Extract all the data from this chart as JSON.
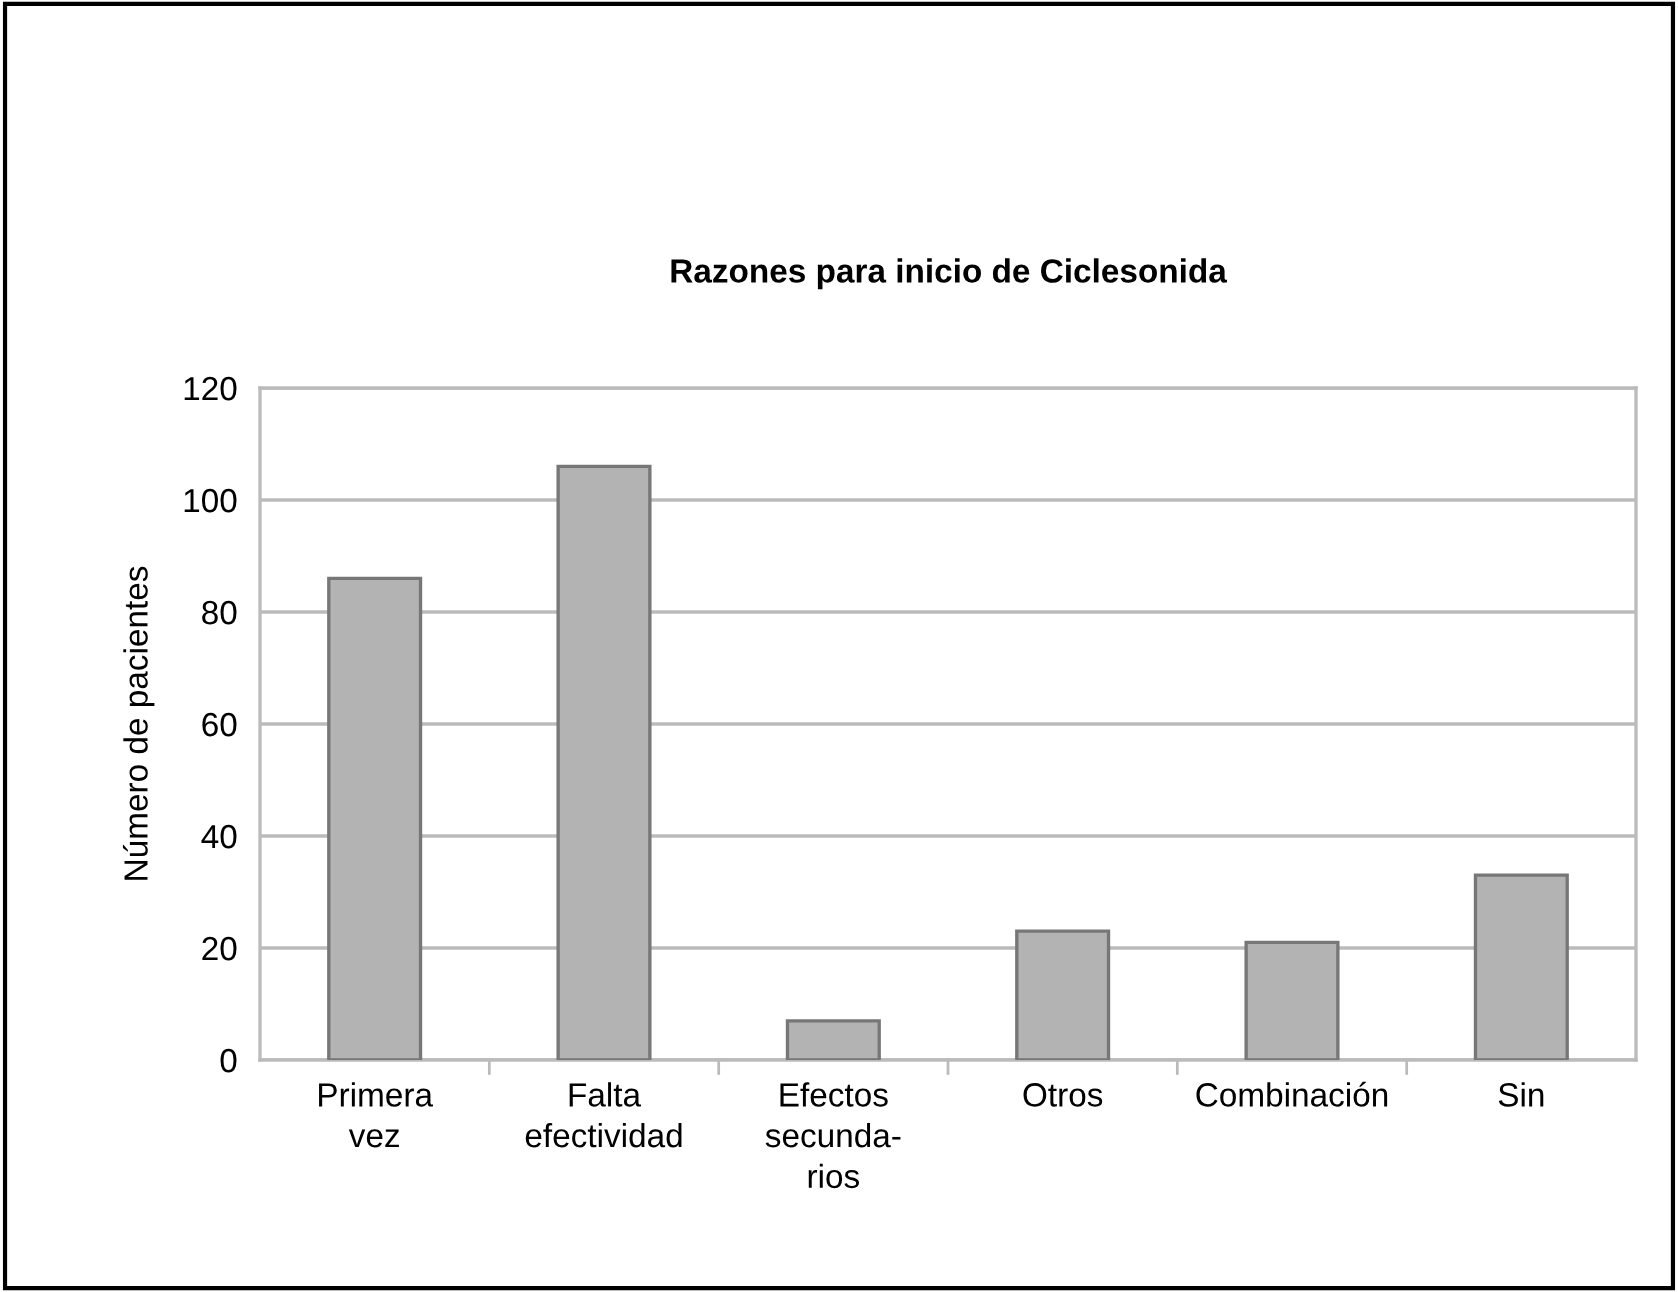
{
  "chart_data": {
    "type": "bar",
    "title": "Razones para inicio de Ciclesonida",
    "ylabel": "Número de pacientes",
    "categories": [
      "Primera\nvez",
      "Falta\nefectividad",
      "Efectos\nsecunda-\nrios",
      "Otros",
      "Combinación",
      "Sin"
    ],
    "values": [
      86,
      106,
      7,
      23,
      21,
      33
    ],
    "color": "#b3b3b3",
    "ylim": [
      0,
      120
    ],
    "yticks": [
      0,
      20,
      40,
      60,
      80,
      100,
      120
    ],
    "grid": "y",
    "legend": false
  }
}
